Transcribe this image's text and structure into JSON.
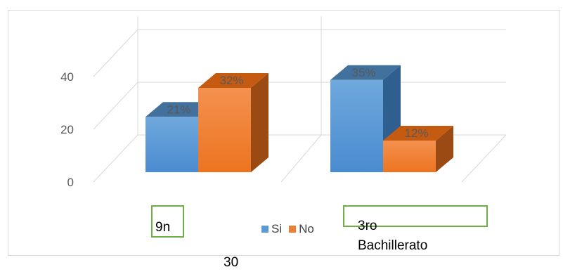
{
  "chart_data": {
    "type": "bar",
    "categories": [
      "9n",
      "3ro Bachillerato"
    ],
    "series": [
      {
        "name": "Si",
        "values": [
          21,
          35
        ],
        "labels": [
          "21%",
          "35%"
        ]
      },
      {
        "name": "No",
        "values": [
          32,
          12
        ],
        "labels": [
          "32%",
          "12%"
        ]
      }
    ],
    "yticks": [
      0,
      20,
      40
    ],
    "ylim": [
      0,
      45
    ],
    "grid": true,
    "three_d": true,
    "legend": "bottom-center"
  },
  "colors": {
    "si_front": "#5b9bd5",
    "si_side": "#2e5f8e",
    "si_top": "#41719c",
    "no_front": "#ed7d31",
    "no_side": "#9c4a14",
    "no_top": "#c55a11",
    "grid": "#d9d9d9",
    "category_box": "#70ad47"
  },
  "category_labels": [
    "9n",
    "3ro",
    "Bachillerato"
  ],
  "page_number": "30"
}
